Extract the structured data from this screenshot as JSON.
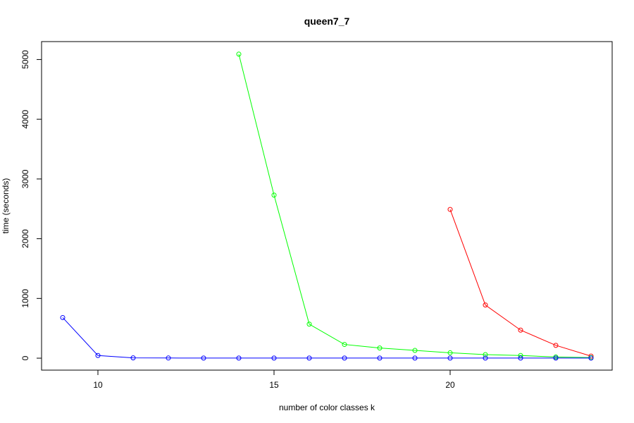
{
  "chart_data": {
    "type": "line",
    "title": "queen7_7",
    "xlabel": "number of color classes k",
    "ylabel": "time (seconds)",
    "xlim": [
      8.4,
      24.6
    ],
    "ylim": [
      -200,
      5300
    ],
    "x_ticks": [
      10,
      15,
      20
    ],
    "y_ticks": [
      0,
      1000,
      2000,
      3000,
      4000,
      5000
    ],
    "x_tick_labels": [
      "10",
      "15",
      "20"
    ],
    "y_tick_labels": [
      "0",
      "1000",
      "2000",
      "3000",
      "4000",
      "5000"
    ],
    "legend": "none",
    "grid": false,
    "markers": "open-circle",
    "series": [
      {
        "color": "#ff0000",
        "x": [
          20,
          21,
          22,
          23,
          24
        ],
        "y": [
          2490,
          890,
          470,
          215,
          35
        ]
      },
      {
        "color": "#00ff00",
        "x": [
          14,
          15,
          16,
          17,
          18,
          19,
          20,
          21,
          22,
          23,
          24
        ],
        "y": [
          5090,
          2730,
          570,
          230,
          170,
          130,
          90,
          60,
          45,
          20,
          10
        ]
      },
      {
        "color": "#0000ff",
        "x": [
          9,
          10,
          11,
          12,
          13,
          14,
          15,
          16,
          17,
          18,
          19,
          20,
          21,
          22,
          23,
          24
        ],
        "y": [
          680,
          45,
          5,
          3,
          2,
          2,
          2,
          2,
          2,
          2,
          2,
          2,
          2,
          2,
          2,
          2
        ]
      }
    ]
  }
}
